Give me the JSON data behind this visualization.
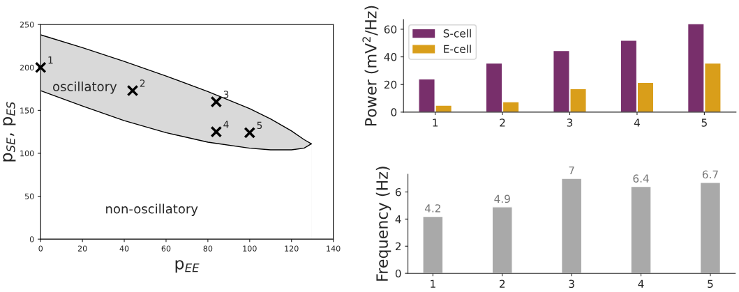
{
  "chart_data": [
    {
      "type": "scatter",
      "xlabel": "p$_{EE}$",
      "ylabel": "p$_{SE}$, p$_{ES}$",
      "xlim": [
        0,
        140
      ],
      "ylim": [
        0,
        250
      ],
      "xticks": [
        0,
        20,
        40,
        60,
        80,
        100,
        120,
        140
      ],
      "yticks": [
        0,
        50,
        100,
        150,
        200,
        250
      ],
      "grid": false,
      "series": [
        {
          "type": "area",
          "color": "#d9d9d9",
          "x": [
            0,
            20,
            40,
            60,
            80,
            100,
            110,
            120,
            126,
            129.5
          ],
          "values": [
            238,
            223,
            207,
            190,
            172,
            152,
            140,
            126,
            116,
            111
          ]
        },
        {
          "type": "area",
          "color": "#ffffff",
          "x": [
            0,
            20,
            40,
            60,
            80,
            100,
            110,
            120,
            126,
            129.5
          ],
          "values": [
            173,
            155,
            138,
            124,
            113,
            106,
            104,
            104,
            106,
            111
          ]
        },
        {
          "type": "scatter",
          "marker": "cross",
          "color": "#000000",
          "x": [
            0,
            44,
            84,
            84,
            100
          ],
          "values": [
            200,
            173,
            160,
            125,
            124
          ]
        }
      ],
      "annotations": [
        {
          "text": "1",
          "x": 0,
          "y": 200
        },
        {
          "text": "2",
          "x": 44,
          "y": 173
        },
        {
          "text": "3",
          "x": 84,
          "y": 160
        },
        {
          "text": "4",
          "x": 84,
          "y": 125
        },
        {
          "text": "5",
          "x": 100,
          "y": 124
        },
        "oscillatory",
        "non-oscillatory"
      ]
    },
    {
      "type": "bar",
      "ylabel": "Power (mV$^{2}$/Hz)",
      "categories": [
        "1",
        "2",
        "3",
        "4",
        "5"
      ],
      "ylim": [
        0,
        67
      ],
      "yticks": [
        0,
        20,
        40,
        60
      ],
      "grid": false,
      "legend": "top left",
      "series": [
        {
          "name": "S-cell",
          "color": "#782f6b",
          "values": [
            24,
            35.5,
            44.5,
            52,
            64
          ]
        },
        {
          "name": "E-cell",
          "color": "#d99e1a",
          "values": [
            5,
            7.5,
            17,
            21.5,
            35.5
          ]
        }
      ]
    },
    {
      "type": "bar",
      "ylabel": "Frequency (Hz)",
      "categories": [
        "1",
        "2",
        "3",
        "4",
        "5"
      ],
      "ylim": [
        0,
        7.3
      ],
      "yticks": [
        0,
        2,
        4,
        6
      ],
      "grid": false,
      "data_labels": true,
      "legend": false,
      "series": [
        {
          "color": "#a9a9a9",
          "values": [
            4.2,
            4.9,
            7,
            6.4,
            6.7
          ]
        }
      ]
    }
  ]
}
